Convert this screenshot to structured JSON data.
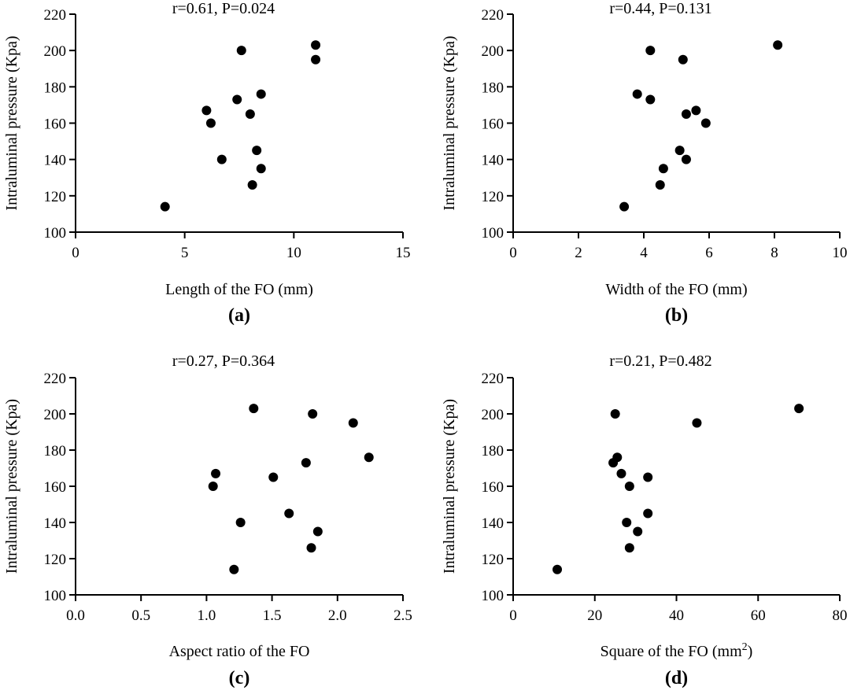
{
  "chart_data": [
    {
      "type": "scatter",
      "panel_label": "(a)",
      "annotation": "r=0.61, P=0.024",
      "xlabel": "Length of the FO (mm)",
      "ylabel": "Intraluminal pressure (Kpa)",
      "xlim": [
        0,
        15
      ],
      "ylim": [
        100,
        220
      ],
      "xticks": [
        "0",
        "5",
        "10",
        "15"
      ],
      "yticks": [
        "100",
        "120",
        "140",
        "160",
        "180",
        "200",
        "220"
      ],
      "points": [
        {
          "x": 4.1,
          "y": 114
        },
        {
          "x": 6.0,
          "y": 167
        },
        {
          "x": 6.2,
          "y": 160
        },
        {
          "x": 6.7,
          "y": 140
        },
        {
          "x": 7.4,
          "y": 173
        },
        {
          "x": 7.6,
          "y": 200
        },
        {
          "x": 8.0,
          "y": 165
        },
        {
          "x": 8.1,
          "y": 126
        },
        {
          "x": 8.3,
          "y": 145
        },
        {
          "x": 8.5,
          "y": 135
        },
        {
          "x": 8.5,
          "y": 176
        },
        {
          "x": 11.0,
          "y": 203
        },
        {
          "x": 11.0,
          "y": 195
        }
      ]
    },
    {
      "type": "scatter",
      "panel_label": "(b)",
      "annotation": "r=0.44, P=0.131",
      "xlabel": "Width of the FO (mm)",
      "ylabel": "Intraluminal pressure (Kpa)",
      "xlim": [
        0,
        10
      ],
      "ylim": [
        100,
        220
      ],
      "xticks": [
        "0",
        "2",
        "4",
        "6",
        "8",
        "10"
      ],
      "yticks": [
        "100",
        "120",
        "140",
        "160",
        "180",
        "200",
        "220"
      ],
      "points": [
        {
          "x": 3.4,
          "y": 114
        },
        {
          "x": 3.8,
          "y": 176
        },
        {
          "x": 4.2,
          "y": 173
        },
        {
          "x": 4.2,
          "y": 200
        },
        {
          "x": 4.5,
          "y": 126
        },
        {
          "x": 4.6,
          "y": 135
        },
        {
          "x": 5.1,
          "y": 145
        },
        {
          "x": 5.2,
          "y": 195
        },
        {
          "x": 5.3,
          "y": 140
        },
        {
          "x": 5.3,
          "y": 165
        },
        {
          "x": 5.6,
          "y": 167
        },
        {
          "x": 5.9,
          "y": 160
        },
        {
          "x": 8.1,
          "y": 203
        }
      ]
    },
    {
      "type": "scatter",
      "panel_label": "(c)",
      "annotation": "r=0.27, P=0.364",
      "xlabel": "Aspect ratio of the FO",
      "ylabel": "Intraluminal pressure (Kpa)",
      "xlim": [
        0,
        2.5
      ],
      "ylim": [
        100,
        220
      ],
      "xticks": [
        "0.0",
        "0.5",
        "1.0",
        "1.5",
        "2.0",
        "2.5"
      ],
      "yticks": [
        "100",
        "120",
        "140",
        "160",
        "180",
        "200",
        "220"
      ],
      "points": [
        {
          "x": 1.05,
          "y": 160
        },
        {
          "x": 1.07,
          "y": 167
        },
        {
          "x": 1.21,
          "y": 114
        },
        {
          "x": 1.26,
          "y": 140
        },
        {
          "x": 1.36,
          "y": 203
        },
        {
          "x": 1.51,
          "y": 165
        },
        {
          "x": 1.63,
          "y": 145
        },
        {
          "x": 1.76,
          "y": 173
        },
        {
          "x": 1.8,
          "y": 126
        },
        {
          "x": 1.81,
          "y": 200
        },
        {
          "x": 1.85,
          "y": 135
        },
        {
          "x": 2.12,
          "y": 195
        },
        {
          "x": 2.24,
          "y": 176
        }
      ]
    },
    {
      "type": "scatter",
      "panel_label": "(d)",
      "annotation": "r=0.21, P=0.482",
      "xlabel": "Square of the FO (mm",
      "xlabel_superscript": "2",
      "xlabel_suffix": ")",
      "ylabel": "Intraluminal pressure (Kpa)",
      "xlim": [
        0,
        80
      ],
      "ylim": [
        100,
        220
      ],
      "xticks": [
        "0",
        "20",
        "40",
        "60",
        "80"
      ],
      "yticks": [
        "100",
        "120",
        "140",
        "160",
        "180",
        "200",
        "220"
      ],
      "points": [
        {
          "x": 10.8,
          "y": 114
        },
        {
          "x": 24.5,
          "y": 173
        },
        {
          "x": 25.0,
          "y": 200
        },
        {
          "x": 25.5,
          "y": 176
        },
        {
          "x": 26.5,
          "y": 167
        },
        {
          "x": 27.8,
          "y": 140
        },
        {
          "x": 28.5,
          "y": 126
        },
        {
          "x": 28.5,
          "y": 160
        },
        {
          "x": 30.5,
          "y": 135
        },
        {
          "x": 33.0,
          "y": 145
        },
        {
          "x": 33.0,
          "y": 165
        },
        {
          "x": 45.0,
          "y": 195
        },
        {
          "x": 70.0,
          "y": 203
        }
      ]
    }
  ]
}
